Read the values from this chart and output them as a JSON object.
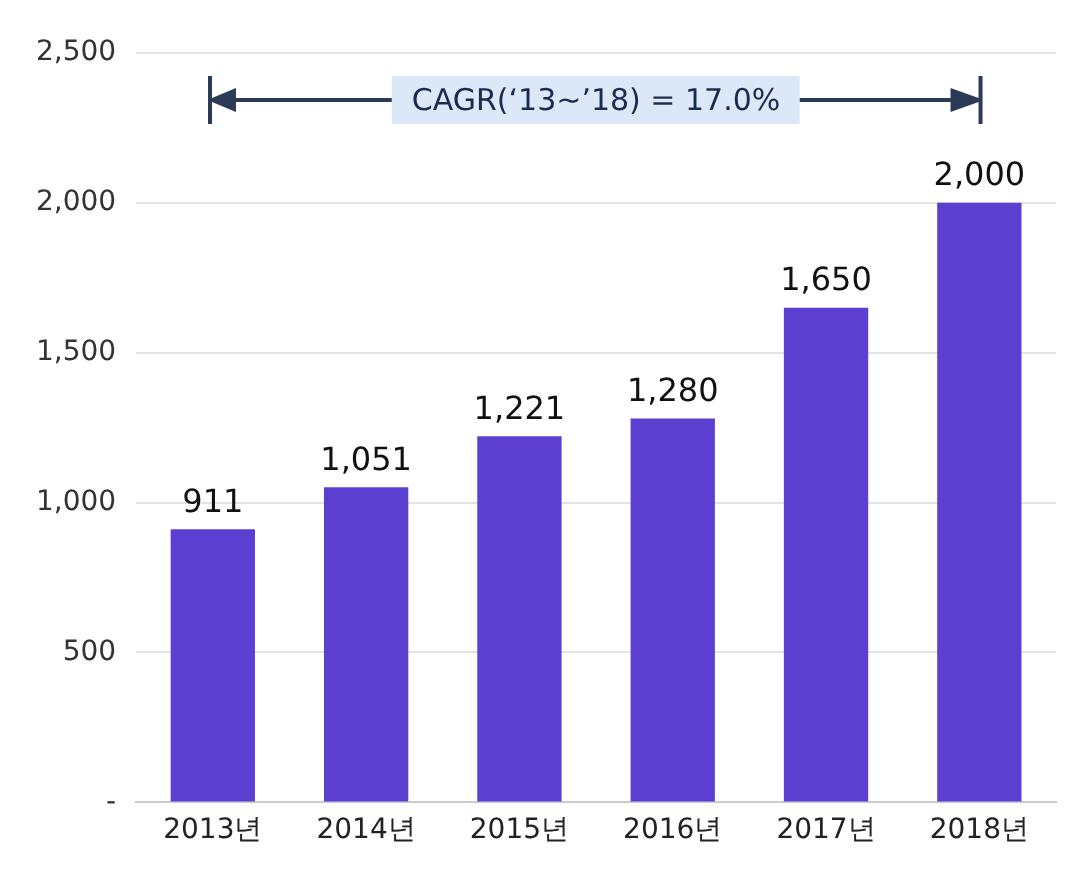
{
  "chart_data": {
    "type": "bar",
    "categories": [
      "2013년",
      "2014년",
      "2015년",
      "2016년",
      "2017년",
      "2018년"
    ],
    "values": [
      911,
      1051,
      1221,
      1280,
      1650,
      2000
    ],
    "value_labels": [
      "911",
      "1,051",
      "1,221",
      "1,280",
      "1,650",
      "2,000"
    ],
    "color": "#5b3fd0",
    "ylim": [
      0,
      2500
    ],
    "yticks": [
      {
        "value": 0,
        "label": "-"
      },
      {
        "value": 500,
        "label": "500"
      },
      {
        "value": 1000,
        "label": "1,000"
      },
      {
        "value": 1500,
        "label": "1,500"
      },
      {
        "value": 2000,
        "label": "2,000"
      },
      {
        "value": 2500,
        "label": "2,500"
      }
    ],
    "grid": "y",
    "legend": false,
    "annotations": [
      "CAGR(‘13~’18) = 17.0%"
    ]
  }
}
